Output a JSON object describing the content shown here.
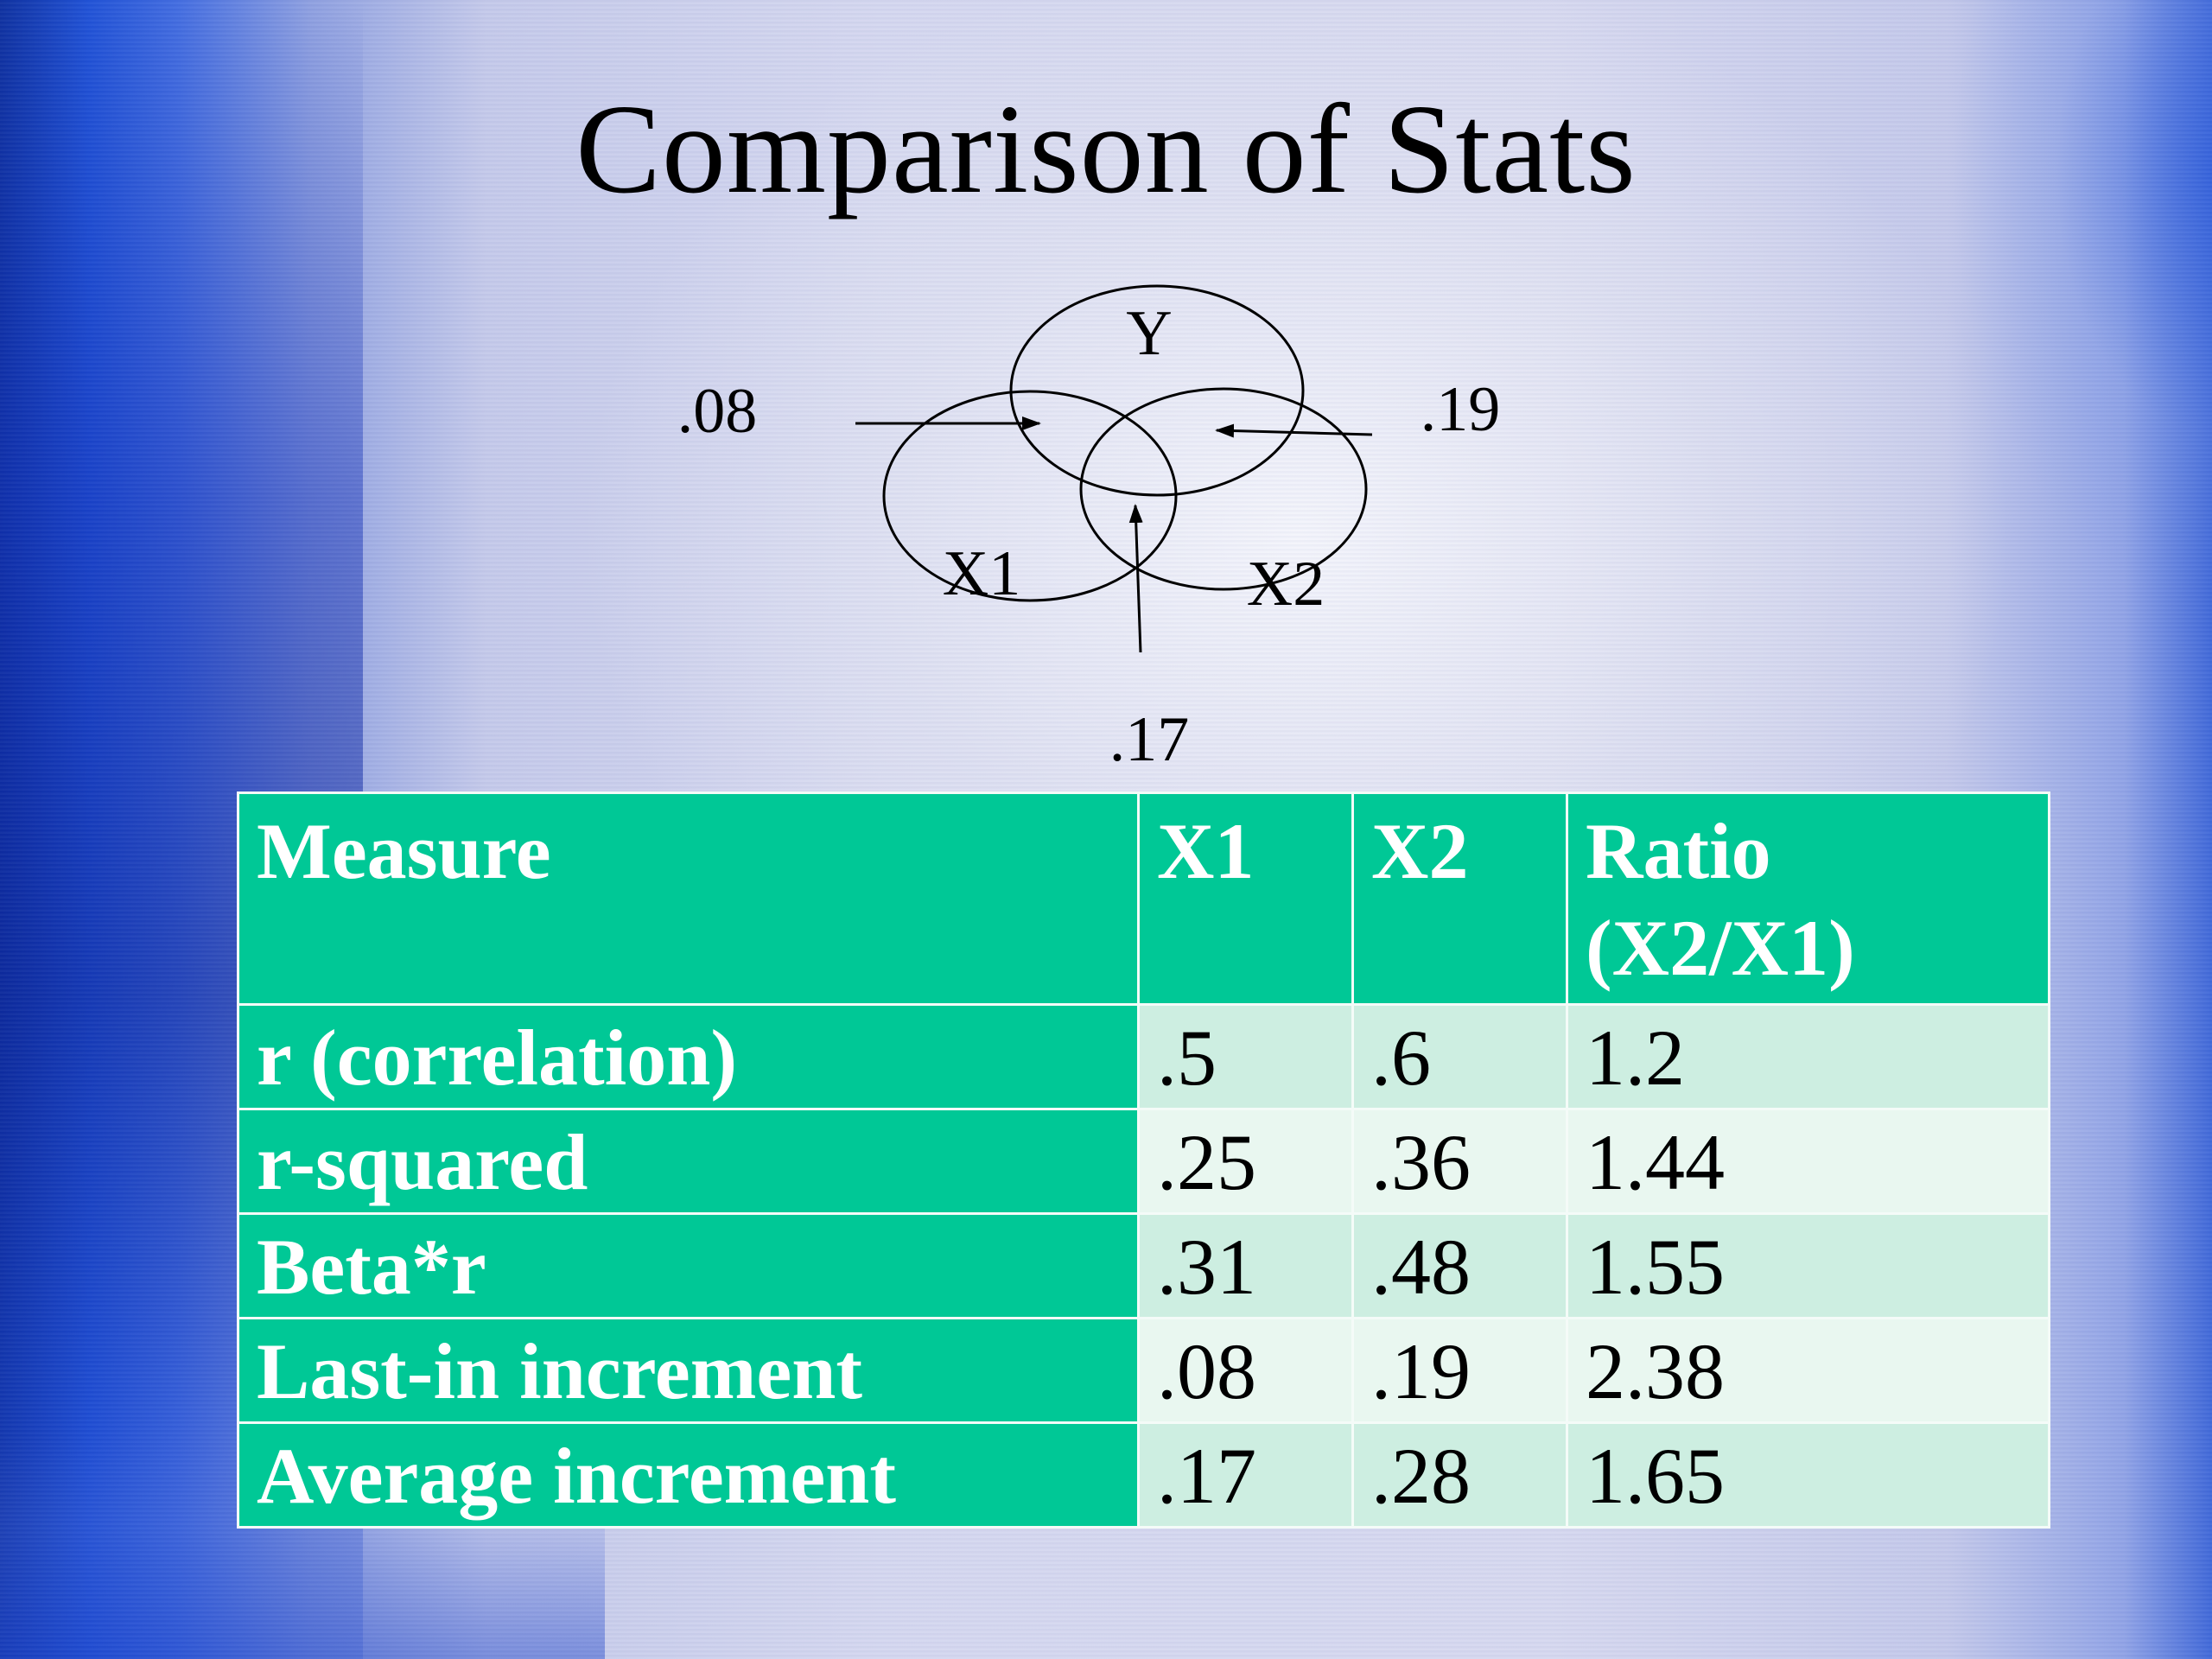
{
  "slide": {
    "title": "Comparison of Stats"
  },
  "diagram": {
    "circle_labels": {
      "y": "Y",
      "x1": "X1",
      "x2": "X2"
    },
    "value_labels": {
      "x1_unique": ".08",
      "x2_unique": ".19",
      "shared": ".17"
    }
  },
  "table": {
    "headers": [
      "Measure",
      "X1",
      "X2",
      "Ratio (X2/X1)"
    ],
    "rows": [
      {
        "measure": "r (correlation)",
        "x1": ".5",
        "x2": ".6",
        "ratio": "1.2"
      },
      {
        "measure": "r-squared",
        "x1": ".25",
        "x2": ".36",
        "ratio": "1.44"
      },
      {
        "measure": "Beta*r",
        "x1": ".31",
        "x2": ".48",
        "ratio": "1.55"
      },
      {
        "measure": "Last-in increment",
        "x1": ".08",
        "x2": ".19",
        "ratio": "2.38"
      },
      {
        "measure": "Average increment",
        "x1": ".17",
        "x2": ".28",
        "ratio": "1.65"
      }
    ],
    "colors": {
      "header_bg": "#00c896",
      "row_band_1": "#cdeee1",
      "row_band_2": "#e9f7f0"
    }
  }
}
